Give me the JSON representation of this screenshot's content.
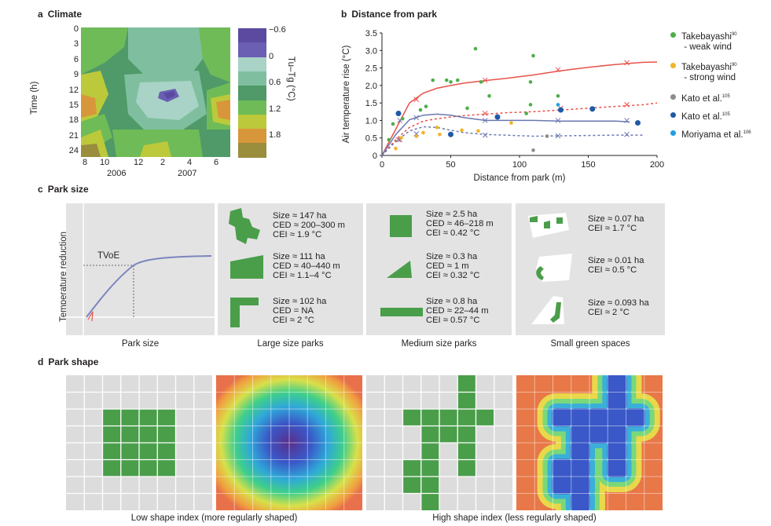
{
  "panel_a": {
    "letter": "a",
    "title": "Climate",
    "ylabel": "Time (h)",
    "yticks": [
      "0",
      "3",
      "6",
      "9",
      "12",
      "15",
      "18",
      "21",
      "24"
    ],
    "xticks": [
      "8",
      "10",
      "12",
      "2",
      "4",
      "6"
    ],
    "years": [
      "2006",
      "2007"
    ],
    "colorbar_label": "Tu–Tg (°C)",
    "colorbar_ticks": [
      "−0.6",
      "0",
      "0.6",
      "1.2",
      "1.8"
    ],
    "colors": [
      "#5b4aa0",
      "#6a5fb2",
      "#a9d3c7",
      "#7fbf9f",
      "#4f9a68",
      "#6fbb57",
      "#bcc93a",
      "#d8963a",
      "#9a8d3c"
    ]
  },
  "panel_b": {
    "letter": "b",
    "title": "Distance from park",
    "legend": [
      {
        "name": "Takebayashi",
        "sup": "90",
        "line2": " - weak wind",
        "color": "#4daf4a"
      },
      {
        "name": "Takebayashi",
        "sup": "90",
        "line2": " - strong wind",
        "color": "#f0b429"
      },
      {
        "name": "Kato et al.",
        "sup": "105",
        "line2": "",
        "color": "#8c8c8c"
      },
      {
        "name": "Kato et al.",
        "sup": "105",
        "line2": "",
        "color": "#1f5aa6"
      },
      {
        "name": "Moriyama et al.",
        "sup": "106",
        "line2": "",
        "color": "#1e9ee0"
      }
    ]
  },
  "chart_data": {
    "type": "scatter",
    "title": "Distance from park",
    "xlabel": "Distance from park (m)",
    "ylabel": "Air temperature rise (°C)",
    "xlim": [
      0,
      200
    ],
    "ylim": [
      0,
      3.5
    ],
    "xticks": [
      0,
      50,
      100,
      150,
      200
    ],
    "yticks": [
      0,
      0.5,
      1.0,
      1.5,
      2.0,
      2.5,
      3.0,
      3.5
    ],
    "ytick_labels": [
      "0",
      "0.5",
      "1.0",
      "1.5",
      "2.0",
      "2.5",
      "3.0",
      "3.5"
    ],
    "series": [
      {
        "name": "Takebayashi - weak wind",
        "color": "#4daf4a",
        "points": [
          [
            5,
            0.45
          ],
          [
            8,
            0.9
          ],
          [
            15,
            1.05
          ],
          [
            28,
            1.3
          ],
          [
            32,
            1.4
          ],
          [
            37,
            2.15
          ],
          [
            47,
            2.15
          ],
          [
            50,
            2.1
          ],
          [
            55,
            2.15
          ],
          [
            62,
            1.35
          ],
          [
            68,
            3.05
          ],
          [
            72,
            2.1
          ],
          [
            78,
            1.7
          ],
          [
            105,
            1.2
          ],
          [
            108,
            1.45
          ],
          [
            108,
            2.1
          ],
          [
            110,
            2.85
          ],
          [
            128,
            1.7
          ]
        ]
      },
      {
        "name": "Takebayashi - strong wind",
        "color": "#f0b429",
        "points": [
          [
            10,
            0.2
          ],
          [
            14,
            0.5
          ],
          [
            25,
            0.55
          ],
          [
            30,
            0.65
          ],
          [
            40,
            0.8
          ],
          [
            42,
            0.6
          ],
          [
            58,
            0.72
          ],
          [
            70,
            0.7
          ],
          [
            94,
            0.93
          ]
        ]
      },
      {
        "name": "Kato et al. (grey)",
        "color": "#8c8c8c",
        "points": [
          [
            110,
            0.15
          ],
          [
            120,
            0.55
          ]
        ]
      },
      {
        "name": "Kato et al. (blue)",
        "color": "#1f5aa6",
        "points": [
          [
            12,
            1.2
          ],
          [
            50,
            0.6
          ],
          [
            84,
            1.1
          ],
          [
            130,
            1.3
          ],
          [
            153,
            1.33
          ],
          [
            186,
            0.93
          ]
        ]
      },
      {
        "name": "Moriyama et al.",
        "color": "#1e9ee0",
        "points": [
          [
            128,
            1.45
          ]
        ]
      }
    ],
    "curves": [
      {
        "name": "Takebayashi - weak wind fit",
        "color": "#e8524a",
        "dash": false,
        "x": [
          0,
          10,
          20,
          30,
          40,
          50,
          60,
          75,
          90,
          110,
          130,
          150,
          170,
          190,
          200
        ],
        "y": [
          0,
          0.75,
          1.5,
          1.78,
          1.92,
          2.0,
          2.07,
          2.14,
          2.2,
          2.3,
          2.42,
          2.52,
          2.6,
          2.66,
          2.67
        ]
      },
      {
        "name": "Takebayashi - strong wind fit",
        "color": "#e8524a",
        "dash": true,
        "x": [
          0,
          10,
          20,
          30,
          40,
          50,
          60,
          75,
          90,
          110,
          130,
          150,
          170,
          190,
          200
        ],
        "y": [
          0,
          0.45,
          0.8,
          0.98,
          1.05,
          1.1,
          1.14,
          1.18,
          1.22,
          1.25,
          1.3,
          1.35,
          1.4,
          1.45,
          1.5
        ]
      },
      {
        "name": "Kato et al. fit",
        "color": "#6a78b0",
        "dash": false,
        "x": [
          0,
          10,
          20,
          30,
          40,
          50,
          60,
          75,
          90,
          110,
          130,
          150,
          170,
          180
        ],
        "y": [
          0,
          0.6,
          1.02,
          1.15,
          1.18,
          1.15,
          1.08,
          1.0,
          1.0,
          1.0,
          0.98,
          0.98,
          0.98,
          0.96
        ]
      },
      {
        "name": "Kato et al. fit dashed",
        "color": "#6a78b0",
        "dash": true,
        "x": [
          0,
          10,
          20,
          30,
          40,
          50,
          60,
          75,
          90,
          110,
          130,
          150,
          170,
          190
        ],
        "y": [
          0,
          0.4,
          0.7,
          0.82,
          0.8,
          0.72,
          0.65,
          0.6,
          0.58,
          0.55,
          0.56,
          0.57,
          0.58,
          0.58
        ]
      }
    ],
    "markers_x": [
      {
        "color": "#e8524a",
        "points": [
          [
            12,
            0.45
          ],
          [
            25,
            1.6
          ],
          [
            75,
            2.15
          ],
          [
            128,
            2.45
          ],
          [
            178,
            2.65
          ],
          [
            75,
            1.2
          ],
          [
            130,
            1.35
          ],
          [
            178,
            1.45
          ]
        ]
      },
      {
        "color": "#6a78b0",
        "points": [
          [
            13,
            1.0
          ],
          [
            25,
            1.08
          ],
          [
            75,
            1.0
          ],
          [
            128,
            1.0
          ],
          [
            178,
            1.0
          ],
          [
            13,
            0.45
          ],
          [
            25,
            0.62
          ],
          [
            75,
            0.58
          ],
          [
            128,
            0.56
          ],
          [
            178,
            0.6
          ]
        ]
      }
    ]
  },
  "panel_c": {
    "letter": "c",
    "title": "Park size",
    "ylabel": "Temperature reduction",
    "tvoe": "TVoE",
    "captions": [
      "Park size",
      "Large size parks",
      "Medium size parks",
      "Small green spaces"
    ],
    "large": [
      {
        "l1": "Size ≈ 147 ha",
        "l2": "CED ≈ 200–300 m",
        "l3": "CEI ≈ 1.9 °C"
      },
      {
        "l1": "Size ≈ 111 ha",
        "l2": "CED ≈ 40–440 m",
        "l3": "CEI ≈ 1.1–4 °C"
      },
      {
        "l1": "Size ≈ 102 ha",
        "l2": "CED = NA",
        "l3": "CEI ≈ 2 °C"
      }
    ],
    "medium": [
      {
        "l1": "Size ≈ 2.5 ha",
        "l2": "CED ≈ 46–218 m",
        "l3": "CEI ≈ 0.42 °C"
      },
      {
        "l1": "Size ≈ 0.3 ha",
        "l2": "CED ≈ 1 m",
        "l3": "CEI ≈ 0.32 °C"
      },
      {
        "l1": "Size ≈ 0.8 ha",
        "l2": "CED ≈ 22–44 m",
        "l3": "CEI ≈ 0.57 °C"
      }
    ],
    "small": [
      {
        "l1": "Size ≈ 0.07 ha",
        "l2": "CEI ≈ 1.7 °C"
      },
      {
        "l1": "Size ≈ 0.01 ha",
        "l2": "CEI ≈ 0.5 °C"
      },
      {
        "l1": "Size ≈ 0.093 ha",
        "l2": "CEI ≈ 2 °C"
      }
    ],
    "park_green": "#4a9e4a"
  },
  "panel_d": {
    "letter": "d",
    "title": "Park shape",
    "caption_left": "Low shape index (more regularly shaped)",
    "caption_right": "High shape index (less regularly shaped)"
  }
}
